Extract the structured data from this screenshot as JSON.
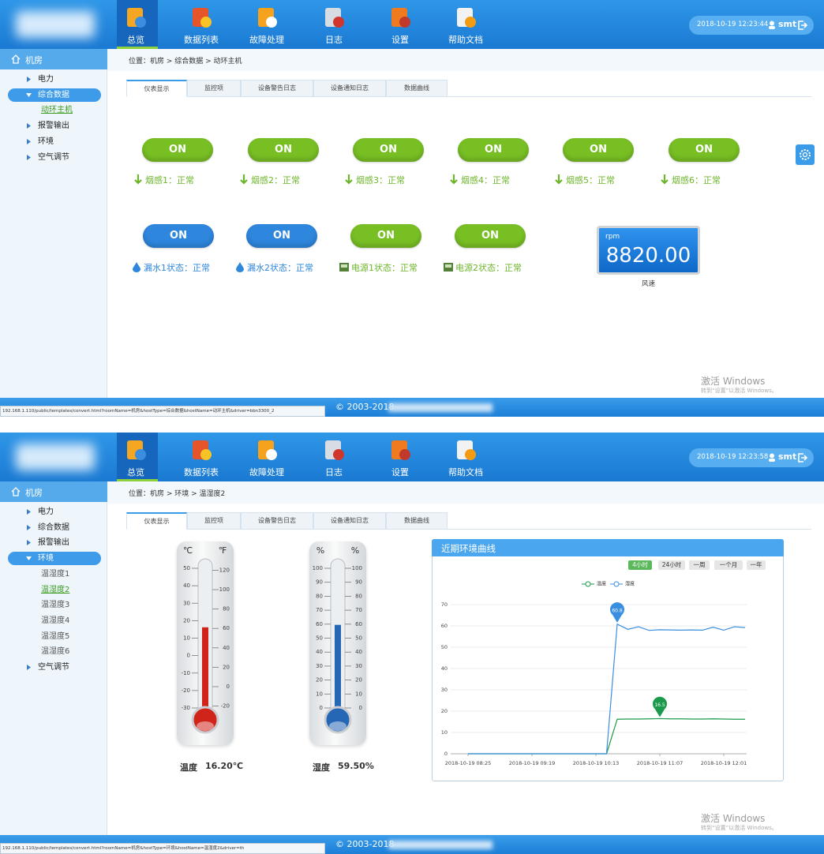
{
  "screens": [
    {
      "header": {
        "nav": [
          "总览",
          "数据列表",
          "故障处理",
          "日志",
          "设置",
          "帮助文档"
        ],
        "active_nav": 0,
        "datetime": "2018-10-19 12:23:44",
        "user": "smt"
      },
      "sidebar": {
        "root": "机房",
        "items": [
          {
            "label": "电力"
          },
          {
            "label": "综合数据",
            "expanded": true,
            "children": [
              {
                "label": "动环主机",
                "current": true
              }
            ]
          },
          {
            "label": "报警输出"
          },
          {
            "label": "环境"
          },
          {
            "label": "空气调节"
          }
        ]
      },
      "breadcrumb": "位置：机房 > 综合数据 > 动环主机",
      "tabs": [
        "仪表显示",
        "监控项",
        "设备警告日志",
        "设备通知日志",
        "数据曲线"
      ],
      "active_tab": 0,
      "switches": [
        {
          "state": "ON",
          "label": "烟感1：正常",
          "color": "#78bf24",
          "icon": "arrow"
        },
        {
          "state": "ON",
          "label": "烟感2：正常",
          "color": "#78bf24",
          "icon": "arrow"
        },
        {
          "state": "ON",
          "label": "烟感3：正常",
          "color": "#78bf24",
          "icon": "arrow"
        },
        {
          "state": "ON",
          "label": "烟感4：正常",
          "color": "#78bf24",
          "icon": "arrow"
        },
        {
          "state": "ON",
          "label": "烟感5：正常",
          "color": "#78bf24",
          "icon": "arrow"
        },
        {
          "state": "ON",
          "label": "烟感6：正常",
          "color": "#78bf24",
          "icon": "arrow"
        },
        {
          "state": "ON",
          "label": "漏水1状态：正常",
          "color": "#2e86dd",
          "icon": "drop"
        },
        {
          "state": "ON",
          "label": "漏水2状态：正常",
          "color": "#2e86dd",
          "icon": "drop"
        },
        {
          "state": "ON",
          "label": "电源1状态：正常",
          "color": "#78bf24",
          "icon": "power"
        },
        {
          "state": "ON",
          "label": "电源2状态：正常",
          "color": "#78bf24",
          "icon": "power"
        }
      ],
      "gauge": {
        "unit": "rpm",
        "value": "8820.00",
        "label": "风速"
      },
      "watermark": [
        "激活 Windows",
        "转到“设置”以激活 Windows。"
      ],
      "footer": "© 2003-2018",
      "status_url": "192.168.1.110/public/templates/convert.html?roomName=机房&hostType=综合数据&hostName=动环主机&driver=bbn3300_2"
    },
    {
      "header": {
        "nav": [
          "总览",
          "数据列表",
          "故障处理",
          "日志",
          "设置",
          "帮助文档"
        ],
        "active_nav": 0,
        "datetime": "2018-10-19 12:23:58",
        "user": "smt"
      },
      "sidebar": {
        "root": "机房",
        "items": [
          {
            "label": "电力"
          },
          {
            "label": "综合数据"
          },
          {
            "label": "报警输出"
          },
          {
            "label": "环境",
            "expanded": true,
            "children": [
              {
                "label": "温湿度1"
              },
              {
                "label": "温湿度2",
                "current": true
              },
              {
                "label": "温湿度3"
              },
              {
                "label": "温湿度4"
              },
              {
                "label": "温湿度5"
              },
              {
                "label": "温湿度6"
              }
            ]
          },
          {
            "label": "空气调节"
          }
        ]
      },
      "breadcrumb": "位置：机房 > 环境 > 温湿度2",
      "tabs": [
        "仪表显示",
        "监控项",
        "设备警告日志",
        "设备通知日志",
        "数据曲线"
      ],
      "active_tab": 0,
      "thermometers": [
        {
          "units": [
            "℃",
            "℉"
          ],
          "left": {
            "lim": [
              -30,
              50
            ],
            "ticks": [
              -30,
              -20,
              -10,
              0,
              10,
              20,
              30,
              40,
              50
            ]
          },
          "right": {
            "lim": [
              -22,
              122
            ],
            "ticks": [
              -20,
              0,
              20,
              40,
              60,
              80,
              100,
              120
            ]
          },
          "value": 16.2,
          "color": "#d0241b",
          "label": "温度",
          "value_label": "16.20℃"
        },
        {
          "units": [
            "%",
            "%"
          ],
          "left": {
            "lim": [
              0,
              100
            ],
            "ticks": [
              0,
              10,
              20,
              30,
              40,
              50,
              60,
              70,
              80,
              90,
              100
            ]
          },
          "right": {
            "lim": [
              0,
              100
            ],
            "ticks": [
              0,
              10,
              20,
              30,
              40,
              50,
              60,
              70,
              80,
              90,
              100
            ]
          },
          "value": 59.5,
          "color": "#2566b5",
          "label": "湿度",
          "value_label": "59.50%"
        }
      ],
      "chart": {
        "type": "line",
        "title": "近期环境曲线",
        "ranges": [
          "4小时",
          "24小时",
          "一周",
          "一个月",
          "一年"
        ],
        "active_range": 0,
        "x": [
          "2018-10-19 08:25",
          "2018-10-19 08:34",
          "2018-10-19 08:43",
          "2018-10-19 08:52",
          "2018-10-19 09:01",
          "2018-10-19 09:10",
          "2018-10-19 09:19",
          "2018-10-19 09:28",
          "2018-10-19 09:37",
          "2018-10-19 09:46",
          "2018-10-19 09:55",
          "2018-10-19 10:04",
          "2018-10-19 10:13",
          "2018-10-19 10:22",
          "2018-10-19 10:31",
          "2018-10-19 10:40",
          "2018-10-19 10:49",
          "2018-10-19 10:58",
          "2018-10-19 11:07",
          "2018-10-19 11:16",
          "2018-10-19 11:25",
          "2018-10-19 11:34",
          "2018-10-19 11:43",
          "2018-10-19 11:52",
          "2018-10-19 12:01",
          "2018-10-19 12:10",
          "2018-10-19 12:19"
        ],
        "xticks": [
          "2018-10-19 08:25",
          "2018-10-19 09:19",
          "2018-10-19 10:13",
          "2018-10-19 11:07",
          "2018-10-19 12:01"
        ],
        "ylim": [
          0,
          70
        ],
        "yticks": [
          0,
          10,
          20,
          30,
          40,
          50,
          60,
          70
        ],
        "grid": true,
        "series": [
          {
            "name": "温度",
            "color": "#1a9a4a",
            "values": [
              0,
              0,
              0,
              0,
              0,
              0,
              0,
              0,
              0,
              0,
              0,
              0,
              0,
              0,
              16.2,
              16.3,
              16.3,
              16.4,
              16.5,
              16.4,
              16.4,
              16.3,
              16.3,
              16.4,
              16.3,
              16.2,
              16.2
            ]
          },
          {
            "name": "湿度",
            "color": "#3a8ee0",
            "values": [
              0,
              0,
              0,
              0,
              0,
              0,
              0,
              0,
              0,
              0,
              0,
              0,
              0,
              0,
              60.8,
              58.4,
              59.6,
              57.9,
              58.2,
              58.1,
              58.0,
              58.1,
              58.0,
              59.4,
              58.0,
              59.6,
              59.2
            ]
          }
        ]
      },
      "watermark": [
        "激活 Windows",
        "转到“设置”以激活 Windows。"
      ],
      "footer": "© 2003-2018",
      "status_url": "192.168.1.110/public/templates/convert.html?roomName=机房&hostType=环境&hostName=温湿度2&driver=th"
    }
  ]
}
